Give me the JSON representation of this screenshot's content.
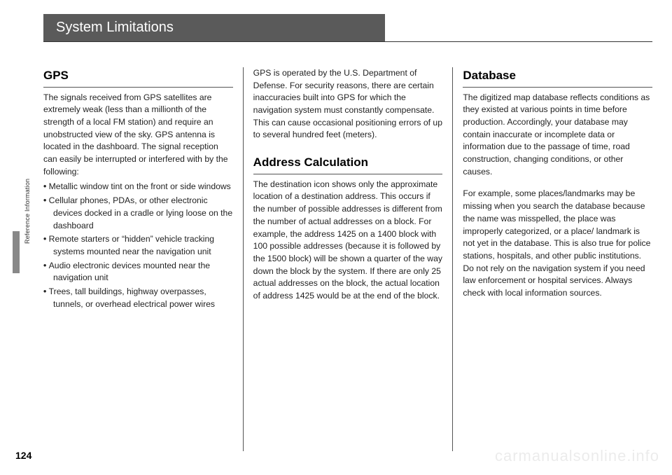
{
  "chapter_title": "System Limitations",
  "side_label": "Reference Information",
  "page_number": "124",
  "watermark": "carmanualsonline.info",
  "col1": {
    "h_gps": "GPS",
    "p_gps": "The signals received from GPS satellites are extremely weak (less than a millionth of the strength of a local FM station) and require an unobstructed view of the sky. GPS antenna is located in the dashboard. The signal reception can easily be interrupted or interfered with by the following:",
    "bullets": [
      "Metallic window tint on the front or side windows",
      "Cellular phones, PDAs, or other electronic devices docked in a cradle or lying loose on the dashboard",
      "Remote starters or “hidden” vehicle tracking systems mounted near the navigation unit",
      "Audio electronic devices mounted near the navigation unit",
      "Trees, tall buildings, highway overpasses, tunnels, or overhead electrical power wires"
    ]
  },
  "col2": {
    "p_defense": "GPS is operated by the U.S. Department of Defense. For security reasons, there are certain inaccuracies built into GPS for which the navigation system must constantly compensate. This can cause occasional positioning errors of up to several hundred feet (meters).",
    "h_addr": "Address Calculation",
    "p_addr": "The destination icon shows only the approximate location of a destination address. This occurs if the number of possible addresses is different from the number of actual addresses on a block. For example, the address 1425 on a 1400 block with 100 possible addresses (because it is followed by the 1500 block) will be shown a quarter of the way down the block by the system. If there are only 25 actual addresses on the block, the actual location of address 1425 would be at the end of the block."
  },
  "col3": {
    "h_db": "Database",
    "p_db1": "The digitized map database reflects conditions as they existed at various points in time before production. Accordingly, your database may contain inaccurate or incomplete data or information due to the passage of time, road construction, changing conditions, or other causes.",
    "p_db2": "For example, some places/landmarks may be missing when you search the database because the name was misspelled, the place was improperly categorized, or a place/ landmark is not yet in the database. This is also true for police stations, hospitals, and other public institutions. Do not rely on the navigation system if you need law enforcement or hospital services. Always check with local information sources."
  }
}
